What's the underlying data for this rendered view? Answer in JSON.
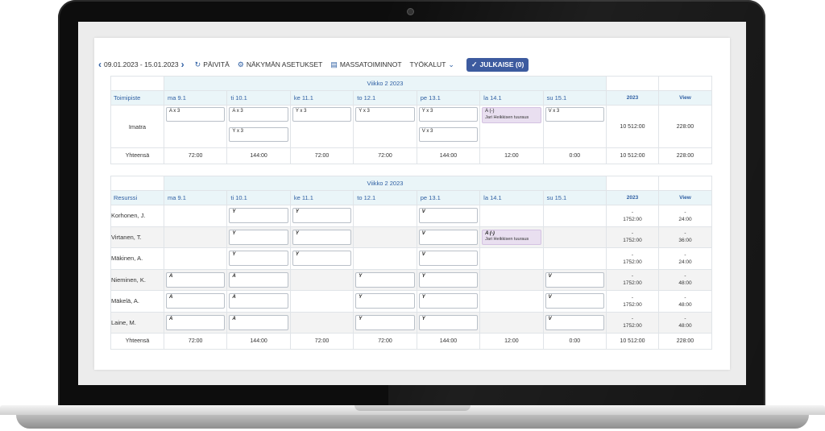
{
  "toolbar": {
    "date_range": "09.01.2023 - 15.01.2023",
    "refresh_label": "PÄIVITÄ",
    "view_settings_label": "NÄKYMÄN ASETUKSET",
    "mass_actions_label": "MASSATOIMINNOT",
    "tools_label": "TYÖKALUT",
    "publish_label": "JULKAISE (0)"
  },
  "week_label": "Viikko 2 2023",
  "days": [
    "ma 9.1",
    "ti 10.1",
    "ke 11.1",
    "to 12.1",
    "pe 13.1",
    "la 14.1",
    "su 15.1"
  ],
  "total_headers": [
    "2023",
    "View"
  ],
  "location_table": {
    "first_header": "Toimipiste",
    "location": "Imatra",
    "shifts_row1": [
      "A x 3",
      "A x 3",
      "Y x 3",
      "Y x 3",
      "Y x 3",
      "A (-)",
      "V x 3"
    ],
    "shifts_row2": [
      "",
      "Y x 3",
      "",
      "",
      "V x 3",
      "",
      ""
    ],
    "substitute_note": "Jari Heikkisen tuuraus",
    "location_totals": [
      "10 512:00",
      "228:00"
    ],
    "total_label": "Yhteensä",
    "day_totals": [
      "72:00",
      "144:00",
      "72:00",
      "72:00",
      "144:00",
      "12:00",
      "0:00"
    ],
    "grand_totals": [
      "10 512:00",
      "228:00"
    ]
  },
  "resource_table": {
    "first_header": "Resurssi",
    "resources": [
      {
        "name": "Korhonen, J.",
        "shifts": [
          "",
          "Y",
          "Y",
          "",
          "V",
          "",
          ""
        ],
        "total_a": "-",
        "total_b": "1752:00",
        "view_a": "-",
        "view_b": "24:00"
      },
      {
        "name": "Virtanen, T.",
        "shifts": [
          "",
          "Y",
          "Y",
          "",
          "V",
          "A (-)",
          ""
        ],
        "total_a": "-",
        "total_b": "1752:00",
        "view_a": "-",
        "view_b": "36:00"
      },
      {
        "name": "Mäkinen, A.",
        "shifts": [
          "",
          "Y",
          "Y",
          "",
          "V",
          "",
          ""
        ],
        "total_a": "-",
        "total_b": "1752:00",
        "view_a": "-",
        "view_b": "24:00"
      },
      {
        "name": "Nieminen, K.",
        "shifts": [
          "A",
          "A",
          "",
          "Y",
          "Y",
          "",
          "V"
        ],
        "total_a": "-",
        "total_b": "1752:00",
        "view_a": "-",
        "view_b": "48:00"
      },
      {
        "name": "Mäkelä, A.",
        "shifts": [
          "A",
          "A",
          "",
          "Y",
          "Y",
          "",
          "V"
        ],
        "total_a": "-",
        "total_b": "1752:00",
        "view_a": "-",
        "view_b": "48:00"
      },
      {
        "name": "Laine, M.",
        "shifts": [
          "A",
          "A",
          "",
          "Y",
          "Y",
          "",
          "V"
        ],
        "total_a": "-",
        "total_b": "1752:00",
        "view_a": "-",
        "view_b": "48:00"
      }
    ],
    "substitute_note": "Jari Heikkisen tuuraus",
    "total_label": "Yhteensä",
    "day_totals": [
      "72:00",
      "144:00",
      "72:00",
      "72:00",
      "144:00",
      "12:00",
      "0:00"
    ],
    "grand_totals": [
      "10 512:00",
      "228:00"
    ]
  },
  "colors": {
    "accent": "#2e5fa3",
    "publish_button": "#3d5b9f",
    "header_bg": "#eaf5f8",
    "substitute_bg": "#e9dff0"
  },
  "icons": [
    "chevron-left-icon",
    "chevron-right-icon",
    "refresh-icon",
    "gear-icon",
    "layers-icon",
    "chevron-down-icon",
    "check-icon"
  ]
}
